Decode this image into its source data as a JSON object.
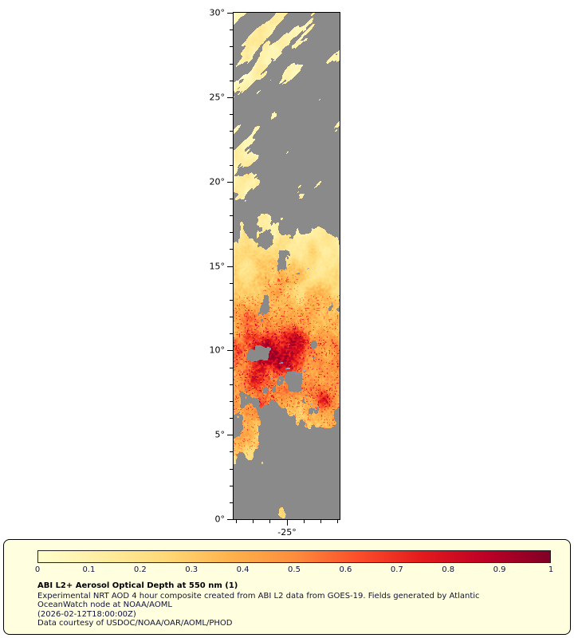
{
  "figure": {
    "map": {
      "y_ticks": [
        {
          "value": 30,
          "label": "30°"
        },
        {
          "value": 25,
          "label": "25°"
        },
        {
          "value": 20,
          "label": "20°"
        },
        {
          "value": 15,
          "label": "15°"
        },
        {
          "value": 10,
          "label": "10°"
        },
        {
          "value": 5,
          "label": "5°"
        },
        {
          "value": 0,
          "label": "0°"
        }
      ],
      "x_ticks": [
        {
          "value": -25,
          "label": "-25°"
        }
      ]
    },
    "legend": {
      "panel_bg": "#ffffe0",
      "colorbar": {
        "tick_labels": [
          "0",
          "0.1",
          "0.2",
          "0.3",
          "0.4",
          "0.5",
          "0.6",
          "0.7",
          "0.8",
          "0.9",
          "1"
        ]
      },
      "caption": {
        "title": "ABI L2+ Aerosol Optical Depth at 550 nm (1)",
        "lines": [
          "Experimental NRT AOD 4 hour composite created from ABI L2 data from GOES-19. Fields generated by Atlantic",
          "OceanWatch node at NOAA/AOML",
          "(2026-02-12T18:00:00Z)",
          "Data courtesy of USDOC/NOAA/OAR/AOML/PHOD"
        ]
      }
    }
  },
  "chart_data": {
    "type": "heatmap",
    "title": "ABI L2+ Aerosol Optical Depth at 550 nm (1)",
    "value_label": "Aerosol Optical Depth at 550 nm",
    "value_range": [
      0,
      1
    ],
    "colorbar_ticks": [
      0,
      0.1,
      0.2,
      0.3,
      0.4,
      0.5,
      0.6,
      0.7,
      0.8,
      0.9,
      1
    ],
    "colormap": [
      "#ffffcc",
      "#ffeda0",
      "#fed976",
      "#feb24c",
      "#fd8d3c",
      "#fc4e2a",
      "#e31a1c",
      "#bd0026",
      "#800026"
    ],
    "no_data_color": "#8a8a8a",
    "water_flag_colors": [
      "#9fabcc",
      "#7f8fb8"
    ],
    "x_axis": {
      "range": [
        -28.15,
        -21.85
      ],
      "tick_values": [
        -25
      ],
      "tick_labels": [
        "-25°"
      ],
      "minor_tick_step": 1
    },
    "y_axis": {
      "range": [
        0,
        30
      ],
      "tick_values": [
        30,
        25,
        20,
        15,
        10,
        5,
        0
      ],
      "tick_labels": [
        "30°",
        "25°",
        "20°",
        "15°",
        "10°",
        "5°",
        "0°"
      ],
      "minor_tick_step": 1
    },
    "field": {
      "coverage_by_lat": [
        [
          0,
          0.04
        ],
        [
          1.2,
          0.05
        ],
        [
          2.2,
          0.12
        ],
        [
          3,
          0.3
        ],
        [
          4,
          0.42
        ],
        [
          5,
          0.55
        ],
        [
          6,
          0.75
        ],
        [
          7,
          0.9
        ],
        [
          8,
          0.95
        ],
        [
          10,
          0.96
        ],
        [
          12,
          0.94
        ],
        [
          14,
          0.9
        ],
        [
          15.5,
          0.88
        ],
        [
          17,
          0.72
        ],
        [
          18.5,
          0.6
        ],
        [
          20,
          0.62
        ],
        [
          21.5,
          0.66
        ],
        [
          23,
          0.52
        ],
        [
          24.5,
          0.46
        ],
        [
          26,
          0.5
        ],
        [
          27.5,
          0.52
        ],
        [
          29,
          0.56
        ],
        [
          30,
          0.5
        ]
      ],
      "right_gap_by_lat": [
        [
          0,
          0.2
        ],
        [
          2,
          0.45
        ],
        [
          3.5,
          0.6
        ],
        [
          5,
          0.55
        ],
        [
          6,
          0.35
        ],
        [
          7,
          0.15
        ],
        [
          9,
          0.05
        ],
        [
          11,
          0.05
        ],
        [
          13,
          0.1
        ],
        [
          15,
          0.2
        ],
        [
          16.5,
          0.35
        ],
        [
          18,
          0.45
        ],
        [
          20,
          0.4
        ],
        [
          22,
          0.35
        ],
        [
          24,
          0.4
        ],
        [
          26,
          0.42
        ],
        [
          28,
          0.3
        ],
        [
          30,
          0.25
        ]
      ],
      "aod_base_by_lat": [
        [
          0,
          0.2
        ],
        [
          2,
          0.24
        ],
        [
          3.5,
          0.28
        ],
        [
          5,
          0.3
        ],
        [
          6,
          0.34
        ],
        [
          7,
          0.38
        ],
        [
          8,
          0.42
        ],
        [
          9,
          0.48
        ],
        [
          10,
          0.52
        ],
        [
          10.8,
          0.48
        ],
        [
          11.5,
          0.4
        ],
        [
          12.5,
          0.33
        ],
        [
          13.5,
          0.26
        ],
        [
          15,
          0.2
        ],
        [
          16.5,
          0.17
        ],
        [
          18,
          0.14
        ],
        [
          20,
          0.12
        ],
        [
          22,
          0.1
        ],
        [
          24,
          0.09
        ],
        [
          26,
          0.09
        ],
        [
          28,
          0.1
        ],
        [
          30,
          0.11
        ]
      ],
      "hotspots": [
        {
          "lat": 10.1,
          "xfrac": 0.28,
          "radius": 1.1,
          "strength": 0.38
        },
        {
          "lat": 9.3,
          "xfrac": 0.5,
          "radius": 0.9,
          "strength": 0.42
        },
        {
          "lat": 10.6,
          "xfrac": 0.6,
          "radius": 0.7,
          "strength": 0.28
        },
        {
          "lat": 8.2,
          "xfrac": 0.2,
          "radius": 0.7,
          "strength": 0.25
        },
        {
          "lat": 7.0,
          "xfrac": 0.85,
          "radius": 0.45,
          "strength": 0.35
        },
        {
          "lat": 6.6,
          "xfrac": 0.3,
          "radius": 0.8,
          "strength": 0.18
        },
        {
          "lat": 11.8,
          "xfrac": 0.15,
          "radius": 0.7,
          "strength": 0.2
        },
        {
          "lat": 14.5,
          "xfrac": 0.45,
          "radius": 1.2,
          "strength": 0.1
        },
        {
          "lat": 4.8,
          "xfrac": 0.12,
          "radius": 0.6,
          "strength": 0.15
        }
      ],
      "water_specks": [
        {
          "lat": 9.0,
          "xfrac": 0.5,
          "size": 4
        },
        {
          "lat": 8.7,
          "xfrac": 0.58,
          "size": 5
        },
        {
          "lat": 8.9,
          "xfrac": 0.66,
          "size": 3
        },
        {
          "lat": 9.3,
          "xfrac": 0.44,
          "size": 3
        },
        {
          "lat": 8.4,
          "xfrac": 0.36,
          "size": 2
        },
        {
          "lat": 14.6,
          "xfrac": 0.6,
          "size": 3
        },
        {
          "lat": 14.9,
          "xfrac": 0.7,
          "size": 2
        },
        {
          "lat": 15.1,
          "xfrac": 0.52,
          "size": 2
        },
        {
          "lat": 6.9,
          "xfrac": 0.74,
          "size": 2
        },
        {
          "lat": 10.4,
          "xfrac": 0.52,
          "size": 2
        }
      ]
    }
  }
}
